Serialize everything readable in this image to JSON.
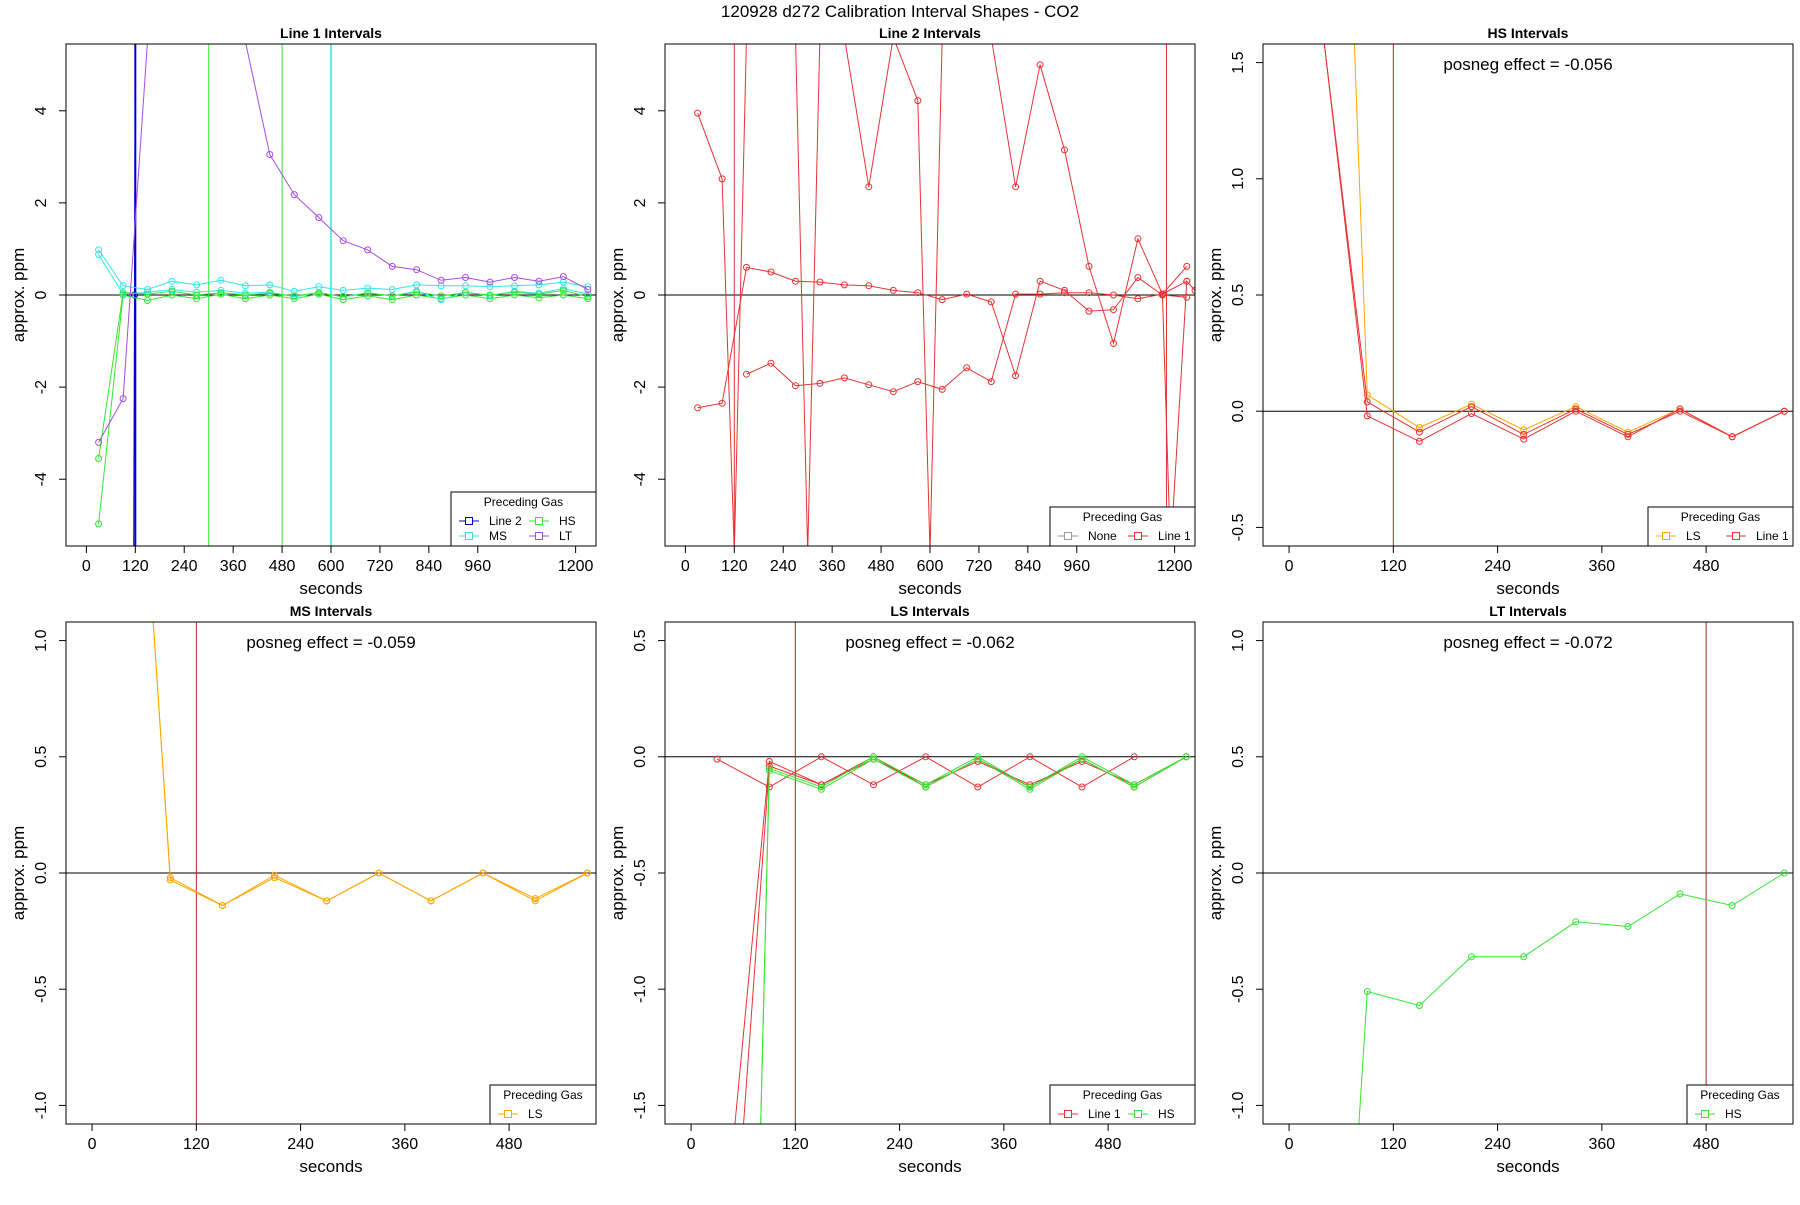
{
  "figure_title": "120928  d272   Calibration Interval Shapes - CO2",
  "colors": {
    "Line 2": "#0000cd",
    "HS": "#33e633",
    "MS": "#33e6e6",
    "LT": "#a84ce6",
    "Line 1": "#e63333",
    "None": "#999999",
    "LS": "#ffa500",
    "vline": "#b22222"
  },
  "chart_data": [
    {
      "type": "line",
      "title": "Line 1 Intervals",
      "xlabel": "seconds",
      "ylabel": "approx. ppm",
      "xlim": [
        -50,
        1250
      ],
      "ylim": [
        -5.45,
        5.45
      ],
      "xticks": [
        0,
        120,
        240,
        360,
        480,
        600,
        720,
        840,
        960,
        1200
      ],
      "yticks": [
        -4,
        -2,
        0,
        2,
        4
      ],
      "hline": 0,
      "annotation": "",
      "legend": {
        "title": "Preceding Gas",
        "entries": [
          "Line 2",
          "HS",
          "MS",
          "LT"
        ],
        "columns": 2,
        "position": "bottom-right"
      },
      "vlines": [
        {
          "x": 120,
          "color": "Line 2",
          "width": 2
        },
        {
          "x": 300,
          "color": "HS",
          "width": 1
        },
        {
          "x": 480,
          "color": "HS",
          "width": 1
        },
        {
          "x": 600,
          "color": "MS",
          "width": 1.5
        }
      ],
      "series": [
        {
          "name": "Line 2",
          "color": "Line 2",
          "x": [
            116,
            118,
            120
          ],
          "y": [
            -5.5,
            0,
            5.5
          ]
        },
        {
          "name": "HS",
          "color": "HS",
          "x": [
            30,
            90,
            150,
            210,
            270,
            330,
            390,
            450,
            510,
            570,
            630,
            690,
            750,
            810,
            870,
            930,
            990,
            1050,
            1110,
            1170,
            1230
          ],
          "y": [
            -4.97,
            0.0,
            -0.12,
            0.0,
            -0.08,
            0.02,
            -0.08,
            0.0,
            -0.08,
            0.02,
            -0.1,
            -0.02,
            -0.1,
            0.0,
            -0.08,
            0.0,
            -0.08,
            0.0,
            -0.06,
            0.0,
            -0.08
          ]
        },
        {
          "name": "MS-a",
          "color": "MS",
          "x": [
            30,
            90,
            150,
            210,
            270,
            330,
            390,
            450,
            510,
            570,
            630,
            690,
            750,
            810,
            870,
            930,
            990,
            1050,
            1110,
            1170,
            1230
          ],
          "y": [
            0.98,
            0.2,
            0.12,
            0.3,
            0.22,
            0.32,
            0.2,
            0.22,
            0.08,
            0.18,
            0.1,
            0.15,
            0.12,
            0.22,
            0.2,
            0.2,
            0.18,
            0.2,
            0.22,
            0.28,
            0.18
          ]
        },
        {
          "name": "MS-b",
          "color": "MS",
          "x": [
            30,
            90,
            150,
            210,
            270,
            330,
            390,
            450,
            510,
            570,
            630,
            690,
            750,
            810,
            870,
            930,
            990,
            1050,
            1110,
            1170,
            1230
          ],
          "y": [
            0.88,
            0.02,
            0.06,
            0.12,
            0.06,
            0.1,
            0.04,
            0.06,
            -0.04,
            0.05,
            -0.04,
            0.05,
            -0.02,
            0.08,
            -0.1,
            0.06,
            -0.02,
            0.08,
            0.04,
            0.14,
            0.02
          ]
        },
        {
          "name": "HS-b",
          "color": "HS",
          "x": [
            30,
            90,
            150,
            210,
            270,
            330,
            390,
            450,
            510,
            570,
            630,
            690,
            750,
            810,
            870,
            930,
            990,
            1050,
            1110,
            1170,
            1230
          ],
          "y": [
            -3.55,
            0.05,
            0.02,
            0.08,
            0.0,
            0.05,
            0.0,
            0.04,
            -0.02,
            0.05,
            -0.04,
            0.04,
            -0.02,
            0.06,
            -0.02,
            0.05,
            0.0,
            0.06,
            0.02,
            0.1,
            -0.04
          ]
        },
        {
          "name": "LT",
          "color": "LT",
          "x": [
            30,
            90,
            150,
            210,
            270,
            330,
            390,
            450,
            510,
            570,
            630,
            690,
            750,
            810,
            870,
            930,
            990,
            1050,
            1110,
            1170,
            1230
          ],
          "y": [
            -3.2,
            -2.25,
            5.5,
            5.5,
            5.5,
            5.5,
            5.5,
            3.05,
            2.18,
            1.68,
            1.18,
            0.98,
            0.62,
            0.55,
            0.32,
            0.38,
            0.28,
            0.38,
            0.3,
            0.4,
            0.12
          ]
        }
      ]
    },
    {
      "type": "line",
      "title": "Line 2 Intervals",
      "xlabel": "seconds",
      "ylabel": "approx. ppm",
      "xlim": [
        -50,
        1250
      ],
      "ylim": [
        -5.45,
        5.45
      ],
      "xticks": [
        0,
        120,
        240,
        360,
        480,
        600,
        720,
        840,
        960,
        1200
      ],
      "yticks": [
        -4,
        -2,
        0,
        2,
        4
      ],
      "hline": 0,
      "annotation": "",
      "legend": {
        "title": "Preceding Gas",
        "entries": [
          "None",
          "Line 1"
        ],
        "columns": 2,
        "position": "bottom-right"
      },
      "vlines": [
        {
          "x": 120,
          "color": "Line 1",
          "width": 1
        },
        {
          "x": 1180,
          "color": "Line 1",
          "width": 1
        }
      ],
      "series": [
        {
          "name": "Line 1-a",
          "color": "Line 1",
          "x": [
            30,
            90,
            120,
            150,
            210,
            270,
            300,
            330,
            390,
            450,
            510,
            570,
            600,
            630,
            690,
            750,
            810,
            870,
            930,
            990,
            1050,
            1110,
            1170,
            1230
          ],
          "y": [
            3.95,
            2.52,
            -5.6,
            5.6,
            5.6,
            5.6,
            -5.6,
            5.6,
            5.6,
            2.35,
            5.6,
            4.22,
            -5.6,
            5.6,
            5.6,
            5.6,
            2.35,
            5.0,
            3.15,
            0.62,
            -1.05,
            1.22,
            0.02,
            0.62
          ]
        },
        {
          "name": "Line 1-b",
          "color": "Line 1",
          "x": [
            30,
            90,
            150,
            210,
            270,
            330,
            390,
            450,
            510,
            570,
            630,
            690,
            750,
            810,
            870,
            930,
            990,
            1050,
            1110,
            1170,
            1230
          ],
          "y": [
            -2.45,
            -2.35,
            0.6,
            0.5,
            0.3,
            0.28,
            0.22,
            0.2,
            0.1,
            0.05,
            -0.1,
            0.02,
            -0.15,
            -1.75,
            0.3,
            0.1,
            -0.35,
            -0.32,
            0.38,
            0.0,
            -0.05
          ]
        },
        {
          "name": "Line 1-c",
          "color": "Line 1",
          "x": [
            150,
            210,
            270,
            330,
            390,
            450,
            510,
            570,
            630,
            690,
            750,
            810,
            870,
            930,
            990,
            1050,
            1110,
            1170,
            1230
          ],
          "y": [
            -1.72,
            -1.48,
            -1.97,
            -1.92,
            -1.8,
            -1.95,
            -2.1,
            -1.88,
            -2.05,
            -1.58,
            -1.88,
            0.02,
            0.02,
            0.05,
            0.05,
            0.0,
            -0.08,
            0.02,
            0.3
          ]
        },
        {
          "name": "Line 1-d",
          "color": "Line 1",
          "x": [
            1170,
            1190,
            1230,
            1250
          ],
          "y": [
            0.02,
            -5.6,
            0.3,
            0.1
          ]
        }
      ]
    },
    {
      "type": "line",
      "title": "HS Intervals",
      "xlabel": "seconds",
      "ylabel": "approx. ppm",
      "xlim": [
        -30,
        580
      ],
      "ylim": [
        -0.58,
        1.58
      ],
      "xticks": [
        0,
        120,
        240,
        360,
        480
      ],
      "yticks": [
        -0.5,
        0.0,
        0.5,
        1.0,
        1.5
      ],
      "hline": 0,
      "annotation": "posneg effect = -0.056",
      "legend": {
        "title": "Preceding Gas",
        "entries": [
          "LS",
          "Line 1"
        ],
        "columns": 2,
        "position": "bottom-right"
      },
      "vlines": [
        {
          "x": 120,
          "color": "vline",
          "width": 1
        }
      ],
      "series": [
        {
          "name": "LS",
          "color": "LS",
          "x": [
            75,
            90,
            150,
            210,
            270,
            330,
            390,
            450,
            510,
            570
          ],
          "y": [
            1.6,
            0.07,
            -0.07,
            0.03,
            -0.08,
            0.02,
            -0.09,
            0.01,
            -0.11,
            0.0
          ]
        },
        {
          "name": "Line 1-a",
          "color": "Line 1",
          "x": [
            40,
            90,
            150,
            210,
            270,
            330,
            390,
            450,
            510,
            570
          ],
          "y": [
            1.6,
            0.04,
            -0.09,
            0.02,
            -0.1,
            0.01,
            -0.1,
            0.0,
            -0.11,
            0.0
          ]
        },
        {
          "name": "Line 1-b",
          "color": "Line 1",
          "x": [
            40,
            90,
            150,
            210,
            270,
            330,
            390,
            450,
            510,
            570
          ],
          "y": [
            1.6,
            -0.02,
            -0.13,
            -0.01,
            -0.12,
            0.0,
            -0.11,
            0.01,
            -0.11,
            0.0
          ]
        }
      ]
    },
    {
      "type": "line",
      "title": "MS Intervals",
      "xlabel": "seconds",
      "ylabel": "approx. ppm",
      "xlim": [
        -30,
        580
      ],
      "ylim": [
        -1.08,
        1.08
      ],
      "xticks": [
        0,
        120,
        240,
        360,
        480
      ],
      "yticks": [
        -1.0,
        -0.5,
        0.0,
        0.5,
        1.0
      ],
      "hline": 0,
      "annotation": "posneg effect = -0.059",
      "legend": {
        "title": "Preceding Gas",
        "entries": [
          "LS"
        ],
        "columns": 1,
        "position": "bottom-right"
      },
      "vlines": [
        {
          "x": 120,
          "color": "vline",
          "width": 1
        }
      ],
      "series": [
        {
          "name": "LS-a",
          "color": "LS",
          "x": [
            70,
            90,
            150,
            210,
            270,
            330,
            390,
            450,
            510,
            570
          ],
          "y": [
            1.1,
            -0.02,
            -0.14,
            -0.02,
            -0.12,
            0.0,
            -0.12,
            0.0,
            -0.11,
            0.0
          ]
        },
        {
          "name": "LS-b",
          "color": "LS",
          "x": [
            70,
            90,
            150,
            210,
            270,
            330,
            390,
            450,
            510,
            570
          ],
          "y": [
            1.1,
            -0.03,
            -0.14,
            -0.01,
            -0.12,
            0.0,
            -0.12,
            0.0,
            -0.12,
            0.0
          ]
        }
      ]
    },
    {
      "type": "line",
      "title": "LS Intervals",
      "xlabel": "seconds",
      "ylabel": "approx. ppm",
      "xlim": [
        -30,
        580
      ],
      "ylim": [
        -1.58,
        0.58
      ],
      "xticks": [
        0,
        120,
        240,
        360,
        480
      ],
      "yticks": [
        -1.5,
        -1.0,
        -0.5,
        0.0,
        0.5
      ],
      "hline": 0,
      "annotation": "posneg effect = -0.062",
      "legend": {
        "title": "Preceding Gas",
        "entries": [
          "Line 1",
          "HS"
        ],
        "columns": 2,
        "position": "bottom-right"
      },
      "vlines": [
        {
          "x": 120,
          "color": "vline",
          "width": 1
        }
      ],
      "series": [
        {
          "name": "Line 1-a",
          "color": "Line 1",
          "x": [
            30,
            90,
            150,
            210,
            270,
            330,
            390,
            450,
            510
          ],
          "y": [
            -0.01,
            -0.13,
            0.0,
            -0.12,
            0.0,
            -0.13,
            0.0,
            -0.13,
            0.0
          ]
        },
        {
          "name": "Line 1-b",
          "color": "Line 1",
          "x": [
            50,
            90,
            150,
            210,
            270,
            330,
            390,
            450,
            510,
            570
          ],
          "y": [
            -1.6,
            -0.02,
            -0.12,
            0.0,
            -0.13,
            -0.01,
            -0.13,
            -0.01,
            -0.13,
            0.0
          ]
        },
        {
          "name": "Line 1-c",
          "color": "Line 1",
          "x": [
            60,
            90,
            150,
            210,
            270,
            330,
            390,
            450,
            510,
            570
          ],
          "y": [
            -1.6,
            -0.04,
            -0.12,
            -0.01,
            -0.12,
            -0.02,
            -0.12,
            -0.02,
            -0.12,
            0.0
          ]
        },
        {
          "name": "HS-a",
          "color": "HS",
          "x": [
            80,
            90,
            150,
            210,
            270,
            330,
            390,
            450,
            510,
            570
          ],
          "y": [
            -1.6,
            -0.05,
            -0.13,
            0.0,
            -0.12,
            0.0,
            -0.13,
            0.0,
            -0.12,
            0.0
          ]
        },
        {
          "name": "HS-b",
          "color": "HS",
          "x": [
            80,
            90,
            150,
            210,
            270,
            330,
            390,
            450,
            510,
            570
          ],
          "y": [
            -1.6,
            -0.06,
            -0.14,
            -0.01,
            -0.13,
            -0.01,
            -0.14,
            -0.01,
            -0.13,
            0.0
          ]
        }
      ]
    },
    {
      "type": "line",
      "title": "LT Intervals",
      "xlabel": "seconds",
      "ylabel": "approx. ppm",
      "xlim": [
        -30,
        580
      ],
      "ylim": [
        -1.08,
        1.08
      ],
      "xticks": [
        0,
        120,
        240,
        360,
        480
      ],
      "yticks": [
        -1.0,
        -0.5,
        0.0,
        0.5,
        1.0
      ],
      "hline": 0,
      "annotation": "posneg effect = -0.072",
      "legend": {
        "title": "Preceding Gas",
        "entries": [
          "HS"
        ],
        "columns": 1,
        "position": "bottom-right"
      },
      "vlines": [
        {
          "x": 480,
          "color": "vline",
          "width": 1
        }
      ],
      "series": [
        {
          "name": "HS",
          "color": "HS",
          "x": [
            80,
            90,
            150,
            210,
            270,
            330,
            390,
            450,
            510,
            570
          ],
          "y": [
            -1.1,
            -0.51,
            -0.57,
            -0.36,
            -0.36,
            -0.21,
            -0.23,
            -0.09,
            -0.14,
            0.0
          ]
        }
      ]
    }
  ]
}
